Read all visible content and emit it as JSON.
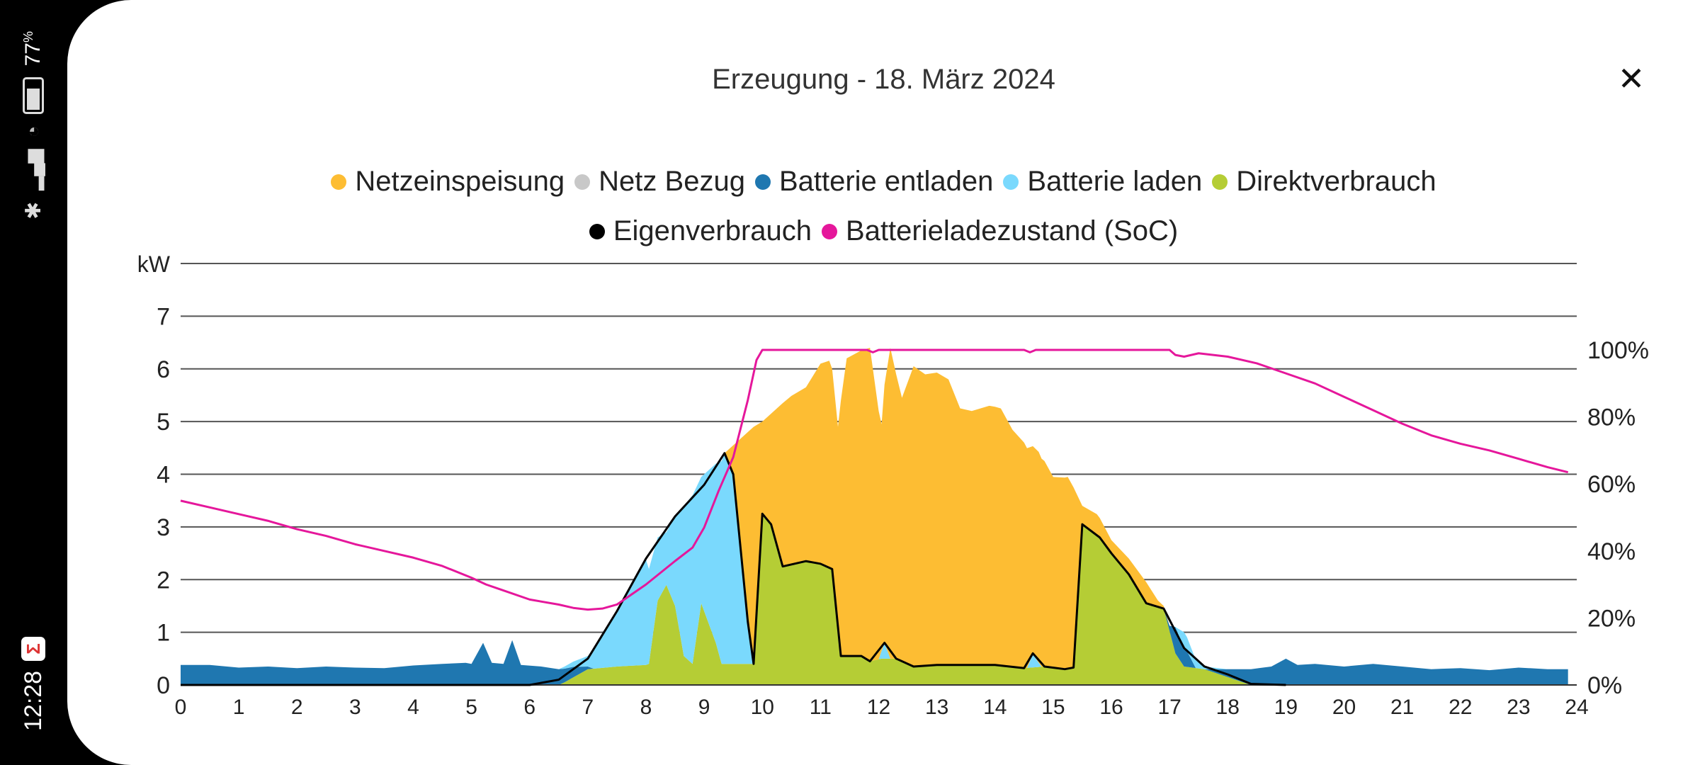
{
  "status_bar": {
    "time": "12:28",
    "battery": "77",
    "battery_unit": "%",
    "app_icon": "app-icon"
  },
  "header": {
    "title": "Erzeugung - 18. März 2024",
    "close_icon": "close-icon",
    "close_glyph": "✕"
  },
  "colors": {
    "netzeinspeisung": "#FDBD33",
    "netz_bezug": "#C8C8C8",
    "batterie_entladen": "#1F77B0",
    "batterie_laden": "#7AD9FD",
    "direktverbrauch": "#B5CD35",
    "eigenverbrauch": "#000000",
    "soc": "#E5179B"
  },
  "chart_data": {
    "type": "area",
    "title": "Erzeugung - 18. März 2024",
    "ylabel": "kW",
    "xlim": [
      0,
      24
    ],
    "ylim": [
      0,
      8
    ],
    "y2lim_percent": [
      0,
      125.8
    ],
    "x_ticks": [
      "0",
      "1",
      "2",
      "3",
      "4",
      "5",
      "6",
      "7",
      "8",
      "9",
      "10",
      "11",
      "12",
      "13",
      "14",
      "15",
      "16",
      "17",
      "18",
      "19",
      "20",
      "21",
      "22",
      "23",
      "24"
    ],
    "y_ticks": [
      "0",
      "1",
      "2",
      "3",
      "4",
      "5",
      "6",
      "7"
    ],
    "y2_ticks": [
      "0%",
      "20%",
      "40%",
      "60%",
      "80%",
      "100%"
    ],
    "grid": true,
    "legend_position": "top",
    "legend": [
      "Netzeinspeisung",
      "Netz Bezug",
      "Batterie entladen",
      "Batterie laden",
      "Direktverbrauch",
      "Eigenverbrauch",
      "Batterieladezustand (SoC)"
    ],
    "stack_order": [
      "direktverbrauch",
      "batterie_entladen",
      "batterie_laden",
      "netzeinspeisung",
      "netz_bezug"
    ],
    "series": {
      "direktverbrauch": [
        [
          0,
          0
        ],
        [
          6.5,
          0
        ],
        [
          6.6,
          0.05
        ],
        [
          7,
          0.3
        ],
        [
          7.5,
          0.35
        ],
        [
          8,
          0.38
        ],
        [
          8.05,
          0.4
        ],
        [
          8.2,
          1.6
        ],
        [
          8.35,
          1.9
        ],
        [
          8.5,
          1.5
        ],
        [
          8.65,
          0.55
        ],
        [
          8.8,
          0.4
        ],
        [
          8.95,
          1.55
        ],
        [
          9.2,
          0.8
        ],
        [
          9.3,
          0.4
        ],
        [
          9.85,
          0.4
        ],
        [
          10,
          3.25
        ],
        [
          10.15,
          3.05
        ],
        [
          10.35,
          2.25
        ],
        [
          10.75,
          2.35
        ],
        [
          11,
          2.3
        ],
        [
          11.2,
          2.2
        ],
        [
          11.35,
          0.55
        ],
        [
          11.7,
          0.55
        ],
        [
          11.85,
          0.45
        ],
        [
          12.05,
          0.5
        ],
        [
          12.3,
          0.5
        ],
        [
          12.6,
          0.35
        ],
        [
          13,
          0.38
        ],
        [
          14,
          0.38
        ],
        [
          14.5,
          0.32
        ],
        [
          14.85,
          0.35
        ],
        [
          15.2,
          0.3
        ],
        [
          15.35,
          0.33
        ],
        [
          15.5,
          3.05
        ],
        [
          15.8,
          2.8
        ],
        [
          16,
          2.5
        ],
        [
          16.3,
          2.1
        ],
        [
          16.6,
          1.55
        ],
        [
          16.9,
          1.45
        ],
        [
          17.1,
          0.6
        ],
        [
          17.25,
          0.35
        ],
        [
          17.6,
          0.3
        ],
        [
          18,
          0.15
        ],
        [
          18.4,
          0
        ],
        [
          24,
          0
        ]
      ],
      "batterie_entladen": [
        [
          0,
          0.38
        ],
        [
          0.5,
          0.38
        ],
        [
          1,
          0.33
        ],
        [
          1.5,
          0.35
        ],
        [
          2,
          0.32
        ],
        [
          2.5,
          0.35
        ],
        [
          3,
          0.33
        ],
        [
          3.5,
          0.32
        ],
        [
          4,
          0.37
        ],
        [
          4.5,
          0.4
        ],
        [
          4.9,
          0.42
        ],
        [
          5,
          0.4
        ],
        [
          5.2,
          0.8
        ],
        [
          5.35,
          0.42
        ],
        [
          5.55,
          0.4
        ],
        [
          5.7,
          0.85
        ],
        [
          5.85,
          0.38
        ],
        [
          6.2,
          0.35
        ],
        [
          6.5,
          0.3
        ],
        [
          6.75,
          0.2
        ],
        [
          7,
          0.05
        ],
        [
          7.1,
          0
        ],
        [
          16.9,
          0
        ],
        [
          17,
          0.1
        ],
        [
          17.1,
          0.5
        ],
        [
          17.3,
          0.3
        ],
        [
          17.45,
          0
        ],
        [
          17.6,
          0
        ],
        [
          18,
          0.15
        ],
        [
          18.4,
          0.3
        ],
        [
          18.75,
          0.35
        ],
        [
          19,
          0.5
        ],
        [
          19.2,
          0.38
        ],
        [
          19.5,
          0.4
        ],
        [
          20,
          0.35
        ],
        [
          20.5,
          0.4
        ],
        [
          21,
          0.35
        ],
        [
          21.5,
          0.3
        ],
        [
          22,
          0.32
        ],
        [
          22.5,
          0.28
        ],
        [
          23,
          0.33
        ],
        [
          23.5,
          0.3
        ],
        [
          23.85,
          0.3
        ]
      ],
      "batterie_laden": [
        [
          0,
          0
        ],
        [
          6.5,
          0
        ],
        [
          6.75,
          0.1
        ],
        [
          7,
          0.2
        ],
        [
          7.5,
          1.05
        ],
        [
          8,
          2.0
        ],
        [
          8.2,
          1.2
        ],
        [
          8.35,
          1.0
        ],
        [
          8.5,
          1.7
        ],
        [
          8.65,
          2.85
        ],
        [
          8.8,
          3.2
        ],
        [
          8.95,
          2.4
        ],
        [
          9.2,
          3.4
        ],
        [
          9.3,
          3.85
        ],
        [
          9.35,
          4.0
        ],
        [
          9.5,
          3.6
        ],
        [
          9.75,
          0.8
        ],
        [
          9.85,
          0
        ],
        [
          12,
          0
        ],
        [
          12.1,
          0.3
        ],
        [
          12.2,
          0
        ],
        [
          14.55,
          0
        ],
        [
          14.65,
          0.25
        ],
        [
          14.8,
          0
        ],
        [
          17.1,
          0
        ],
        [
          17.25,
          0.3
        ],
        [
          17.6,
          0.05
        ],
        [
          18,
          0
        ],
        [
          24,
          0
        ]
      ],
      "netzeinspeisung": [
        [
          0,
          0
        ],
        [
          9.35,
          0
        ],
        [
          9.5,
          0.55
        ],
        [
          9.75,
          3.6
        ],
        [
          9.85,
          4.5
        ],
        [
          10,
          1.75
        ],
        [
          10.15,
          2.1
        ],
        [
          10.35,
          3.1
        ],
        [
          10.5,
          3.2
        ],
        [
          10.75,
          3.3
        ],
        [
          11,
          3.8
        ],
        [
          11.15,
          3.93
        ],
        [
          11.2,
          3.8
        ],
        [
          11.3,
          3.8
        ],
        [
          11.35,
          4.85
        ],
        [
          11.45,
          5.65
        ],
        [
          11.7,
          5.8
        ],
        [
          11.85,
          5.95
        ],
        [
          12.05,
          4.3
        ],
        [
          12.1,
          4.9
        ],
        [
          12.2,
          5.9
        ],
        [
          12.3,
          5.4
        ],
        [
          12.4,
          5.0
        ],
        [
          12.6,
          5.7
        ],
        [
          12.8,
          5.53
        ],
        [
          13,
          5.55
        ],
        [
          13.2,
          5.42
        ],
        [
          13.4,
          4.87
        ],
        [
          13.6,
          4.82
        ],
        [
          13.9,
          4.92
        ],
        [
          14,
          4.9
        ],
        [
          14.1,
          4.88
        ],
        [
          14.3,
          4.5
        ],
        [
          14.5,
          4.28
        ],
        [
          14.65,
          3.95
        ],
        [
          14.75,
          4.0
        ],
        [
          14.85,
          3.9
        ],
        [
          15,
          3.62
        ],
        [
          15.25,
          3.64
        ],
        [
          15.35,
          3.42
        ],
        [
          15.5,
          0.35
        ],
        [
          15.75,
          0.4
        ],
        [
          16,
          0.25
        ],
        [
          16.3,
          0.3
        ],
        [
          16.6,
          0.4
        ],
        [
          16.8,
          0.12
        ],
        [
          16.9,
          0.05
        ],
        [
          17,
          0
        ],
        [
          24,
          0
        ]
      ],
      "netz_bezug": [
        [
          0,
          0
        ],
        [
          24,
          0
        ]
      ],
      "eigenverbrauch": [
        [
          0,
          0
        ],
        [
          6,
          0
        ],
        [
          6.5,
          0.1
        ],
        [
          7,
          0.5
        ],
        [
          7.5,
          1.4
        ],
        [
          8,
          2.4
        ],
        [
          8.5,
          3.2
        ],
        [
          9,
          3.8
        ],
        [
          9.35,
          4.4
        ],
        [
          9.5,
          4.0
        ],
        [
          9.75,
          1.2
        ],
        [
          9.85,
          0.4
        ],
        [
          10,
          3.25
        ],
        [
          10.15,
          3.05
        ],
        [
          10.35,
          2.25
        ],
        [
          10.75,
          2.35
        ],
        [
          11,
          2.3
        ],
        [
          11.2,
          2.2
        ],
        [
          11.35,
          0.55
        ],
        [
          11.7,
          0.55
        ],
        [
          11.85,
          0.45
        ],
        [
          12.1,
          0.8
        ],
        [
          12.3,
          0.5
        ],
        [
          12.6,
          0.35
        ],
        [
          13,
          0.38
        ],
        [
          14,
          0.38
        ],
        [
          14.5,
          0.32
        ],
        [
          14.65,
          0.6
        ],
        [
          14.85,
          0.35
        ],
        [
          15.2,
          0.3
        ],
        [
          15.35,
          0.33
        ],
        [
          15.5,
          3.05
        ],
        [
          15.8,
          2.8
        ],
        [
          16,
          2.5
        ],
        [
          16.3,
          2.1
        ],
        [
          16.6,
          1.55
        ],
        [
          16.9,
          1.45
        ],
        [
          17.25,
          0.7
        ],
        [
          17.6,
          0.35
        ],
        [
          18,
          0.2
        ],
        [
          18.4,
          0.02
        ],
        [
          19,
          0
        ],
        [
          24,
          0
        ]
      ],
      "soc_percent": [
        [
          0,
          55
        ],
        [
          0.5,
          53
        ],
        [
          1,
          51
        ],
        [
          1.5,
          49
        ],
        [
          2,
          46.5
        ],
        [
          2.5,
          44.5
        ],
        [
          3,
          42
        ],
        [
          3.5,
          40
        ],
        [
          4,
          38
        ],
        [
          4.5,
          35.5
        ],
        [
          5,
          32
        ],
        [
          5.25,
          30
        ],
        [
          5.5,
          28.5
        ],
        [
          6,
          25.5
        ],
        [
          6.5,
          24
        ],
        [
          6.75,
          23
        ],
        [
          7,
          22.5
        ],
        [
          7.25,
          22.8
        ],
        [
          7.5,
          24
        ],
        [
          8,
          30
        ],
        [
          8.5,
          37
        ],
        [
          8.8,
          41
        ],
        [
          9,
          47
        ],
        [
          9.25,
          58
        ],
        [
          9.5,
          68
        ],
        [
          9.75,
          85
        ],
        [
          9.9,
          97
        ],
        [
          10,
          100
        ],
        [
          11.8,
          100
        ],
        [
          11.9,
          99.3
        ],
        [
          12,
          100
        ],
        [
          14.5,
          100
        ],
        [
          14.6,
          99.3
        ],
        [
          14.7,
          100
        ],
        [
          17,
          100
        ],
        [
          17.1,
          98.5
        ],
        [
          17.25,
          98
        ],
        [
          17.5,
          99
        ],
        [
          18,
          98
        ],
        [
          18.5,
          96
        ],
        [
          19,
          93
        ],
        [
          19.5,
          90
        ],
        [
          20,
          86
        ],
        [
          20.5,
          82
        ],
        [
          21,
          78
        ],
        [
          21.5,
          74.5
        ],
        [
          22,
          72
        ],
        [
          22.5,
          70
        ],
        [
          23,
          67.5
        ],
        [
          23.5,
          65
        ],
        [
          23.85,
          63.5
        ]
      ]
    }
  }
}
